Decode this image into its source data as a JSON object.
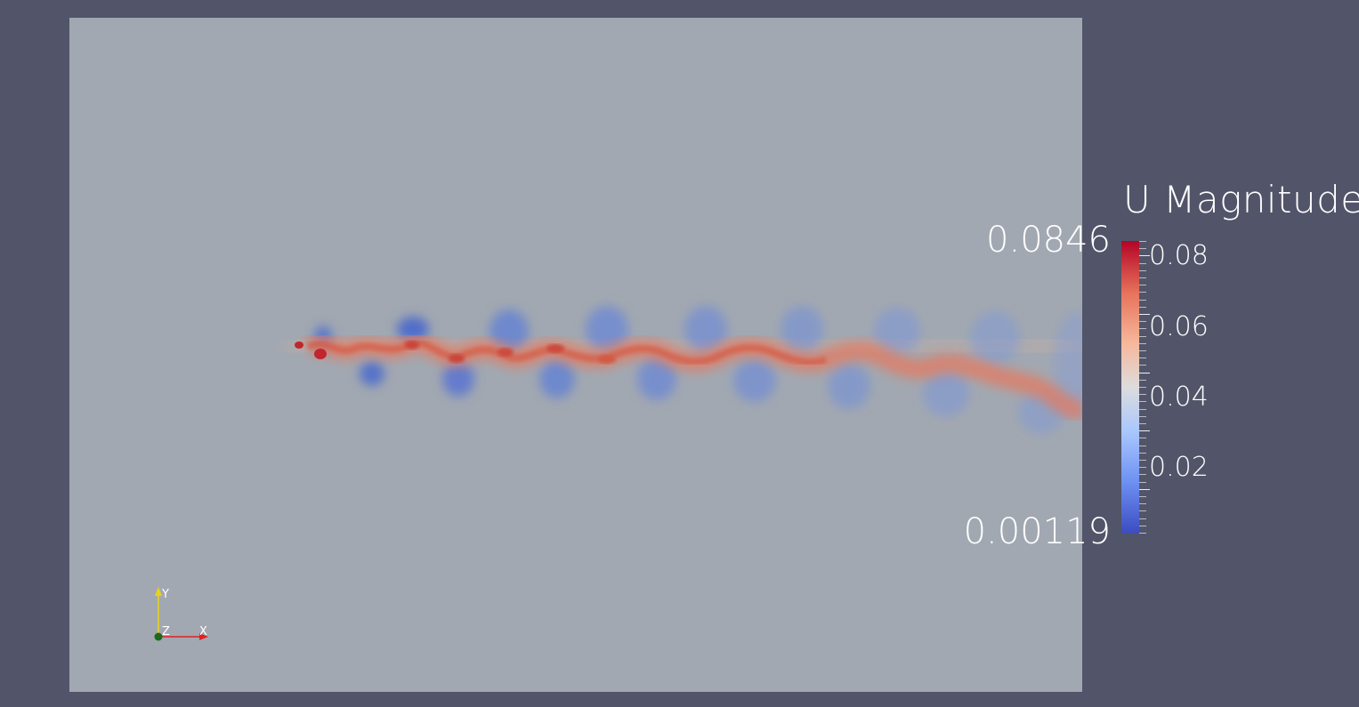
{
  "legend": {
    "title": "U Magnitude",
    "max_label": "0.0846",
    "min_label": "0.00119",
    "tick_labels": [
      "0.08",
      "0.06",
      "0.04",
      "0.02"
    ],
    "range": [
      0.00119,
      0.0846
    ],
    "colormap": "cool-to-warm"
  },
  "axes_triad": {
    "x_label": "X",
    "y_label": "Y",
    "z_label": "Z",
    "x_color": "#e02020",
    "y_color": "#e8d21a",
    "z_color": "#1a7a20"
  },
  "colors": {
    "app_background": "#525569",
    "domain_background": "#a2a8b1",
    "high": "#b40426",
    "mid": "#dddcdc",
    "low": "#3b4cc0"
  }
}
